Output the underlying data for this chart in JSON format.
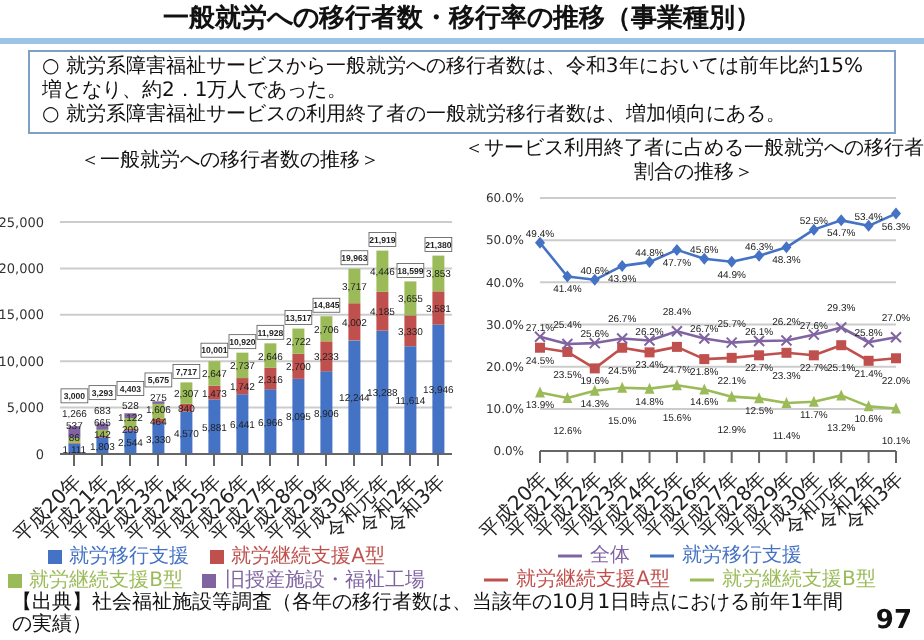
{
  "chart_data": [
    {
      "type": "other",
      "title": "一般就労への移行者数・移行率の推移（事業種別）",
      "annotations": [
        "○ 就労系障害福祉サービスから一般就労への移行者数は、令和3年においては前年比約15%増となり、約2．1万人であった。",
        "○ 就労系障害福祉サービスの利用終了者の一般就労移行者数は、増加傾向にある。",
        "【出典】社会福祉施設等調査（各年の移行者数は、当該年の10月1日時点における前年1年間の実績）",
        "97"
      ]
    },
    {
      "type": "bar",
      "title": "＜一般就労への移行者数の推移＞",
      "stacked": true,
      "grid": "y",
      "legend": "bottom",
      "categories": [
        "平成20年",
        "平成21年",
        "平成22年",
        "平成23年",
        "平成24年",
        "平成25年",
        "平成26年",
        "平成27年",
        "平成28年",
        "平成29年",
        "平成30年",
        "令和元年",
        "令和2年",
        "令和3年"
      ],
      "ylim": [
        0,
        25000
      ],
      "yticks": [
        {
          "value": 0,
          "label": "0"
        },
        {
          "value": 5000,
          "label": "5,000"
        },
        {
          "value": 10000,
          "label": "10,000"
        },
        {
          "value": 15000,
          "label": "15,000"
        },
        {
          "value": 20000,
          "label": "20,000"
        },
        {
          "value": 25000,
          "label": "25,000"
        }
      ],
      "series": [
        {
          "name": "就労移行支援",
          "color": "#4472c4",
          "values": [
            1111,
            1803,
            2544,
            3330,
            4570,
            5881,
            6441,
            6966,
            8095,
            8906,
            12244,
            13288,
            11614,
            13946
          ],
          "value_labels": [
            "1,111",
            "1,803",
            "2,544",
            "3,330",
            "4,570",
            "5,881",
            "6,441",
            "6,966",
            "8,095",
            "8,906",
            "12,244",
            "13,288",
            "11,614",
            "13,946"
          ]
        },
        {
          "name": "就労継続支援A型",
          "color": "#c0504d",
          "values": [
            86,
            142,
            209,
            464,
            840,
            1473,
            1742,
            2316,
            2700,
            3233,
            4002,
            4185,
            3330,
            3581
          ],
          "value_labels": [
            "86",
            "142",
            "209",
            "464",
            "840",
            "1,473",
            "1,742",
            "2,316",
            "2,700",
            "3,233",
            "4,002",
            "4,185",
            "3,330",
            "3,581"
          ]
        },
        {
          "name": "就労継続支援B型",
          "color": "#9bbb59",
          "values": [
            537,
            665,
            1122,
            1606,
            2307,
            2647,
            2737,
            2646,
            2722,
            2706,
            3717,
            4446,
            3655,
            3853
          ],
          "value_labels": [
            "537",
            "665",
            "1,122",
            "1,606",
            "2,307",
            "2,647",
            "2,737",
            "2,646",
            "2,722",
            "2,706",
            "3,717",
            "4,446",
            "3,655",
            "3,853"
          ]
        },
        {
          "name": "旧授産施設・福祉工場",
          "color": "#8064a2",
          "values": [
            1266,
            683,
            528,
            275,
            null,
            null,
            null,
            null,
            null,
            null,
            null,
            null,
            null,
            null
          ],
          "value_labels": [
            "1,266",
            "683",
            "528",
            "275",
            null,
            null,
            null,
            null,
            null,
            null,
            null,
            null,
            null,
            null
          ]
        }
      ],
      "totals": [
        "3,000",
        "3,293",
        "4,403",
        "5,675",
        "7,717",
        "10,001",
        "10,920",
        "11,928",
        "13,517",
        "14,845",
        "19,963",
        "21,919",
        "18,599",
        "21,380"
      ]
    },
    {
      "type": "line",
      "title": "＜サービス利用終了者に占める一般就労への移行者割合の推移＞",
      "grid": "y",
      "legend": "bottom",
      "categories": [
        "平成20年",
        "平成21年",
        "平成22年",
        "平成23年",
        "平成24年",
        "平成25年",
        "平成26年",
        "平成27年",
        "平成28年",
        "平成29年",
        "平成30年",
        "令和元年",
        "令和2年",
        "令和3年"
      ],
      "ylim": [
        0,
        60
      ],
      "yticks": [
        {
          "value": 0,
          "label": "0.0%"
        },
        {
          "value": 10,
          "label": "10.0%"
        },
        {
          "value": 20,
          "label": "20.0%"
        },
        {
          "value": 30,
          "label": "30.0%"
        },
        {
          "value": 40,
          "label": "40.0%"
        },
        {
          "value": 50,
          "label": "50.0%"
        },
        {
          "value": 60,
          "label": "60.0%"
        }
      ],
      "series": [
        {
          "name": "就労移行支援",
          "color": "#4472c4",
          "marker": "diamond",
          "values": [
            49.4,
            41.4,
            40.6,
            43.9,
            44.8,
            47.7,
            45.6,
            44.9,
            46.3,
            48.3,
            52.5,
            54.7,
            53.4,
            56.3
          ],
          "value_labels": [
            "49.4%",
            "41.4%",
            "40.6%",
            "43.9%",
            "44.8%",
            "47.7%",
            "45.6%",
            "44.9%",
            "46.3%",
            "48.3%",
            "52.5%",
            "54.7%",
            "53.4%",
            "56.3%"
          ]
        },
        {
          "name": "就労継続支援A型",
          "color": "#c0504d",
          "marker": "square",
          "values": [
            24.5,
            23.5,
            19.6,
            24.5,
            23.4,
            24.7,
            21.8,
            22.1,
            22.7,
            23.3,
            22.7,
            25.1,
            21.4,
            22.0
          ],
          "value_labels": [
            "24.5%",
            "23.5%",
            "19.6%",
            "24.5%",
            "23.4%",
            "24.7%",
            "21.8%",
            "22.1%",
            "22.7%",
            "23.3%",
            "22.7%",
            "25.1%",
            "21.4%",
            "22.0%"
          ]
        },
        {
          "name": "就労継続支援B型",
          "color": "#9bbb59",
          "marker": "triangle",
          "values": [
            13.9,
            12.6,
            14.3,
            15.0,
            14.8,
            15.6,
            14.6,
            12.9,
            12.5,
            11.4,
            11.7,
            13.2,
            10.6,
            10.1
          ],
          "value_labels": [
            "13.9%",
            "12.6%",
            "14.3%",
            "15.0%",
            "14.8%",
            "15.6%",
            "14.6%",
            "12.9%",
            "12.5%",
            "11.4%",
            "11.7%",
            "13.2%",
            "10.6%",
            "10.1%"
          ]
        },
        {
          "name": "全体",
          "color": "#8064a2",
          "marker": "cross",
          "values": [
            27.1,
            25.4,
            25.6,
            26.7,
            26.2,
            28.4,
            26.7,
            25.7,
            26.1,
            26.2,
            27.6,
            29.3,
            25.8,
            27.0
          ],
          "value_labels": [
            "27.1%",
            "25.4%",
            "25.6%",
            "26.7%",
            "26.2%",
            "28.4%",
            "26.7%",
            "25.7%",
            "26.1%",
            "26.2%",
            "27.6%",
            "29.3%",
            "25.8%",
            "27.0%"
          ]
        }
      ]
    }
  ]
}
